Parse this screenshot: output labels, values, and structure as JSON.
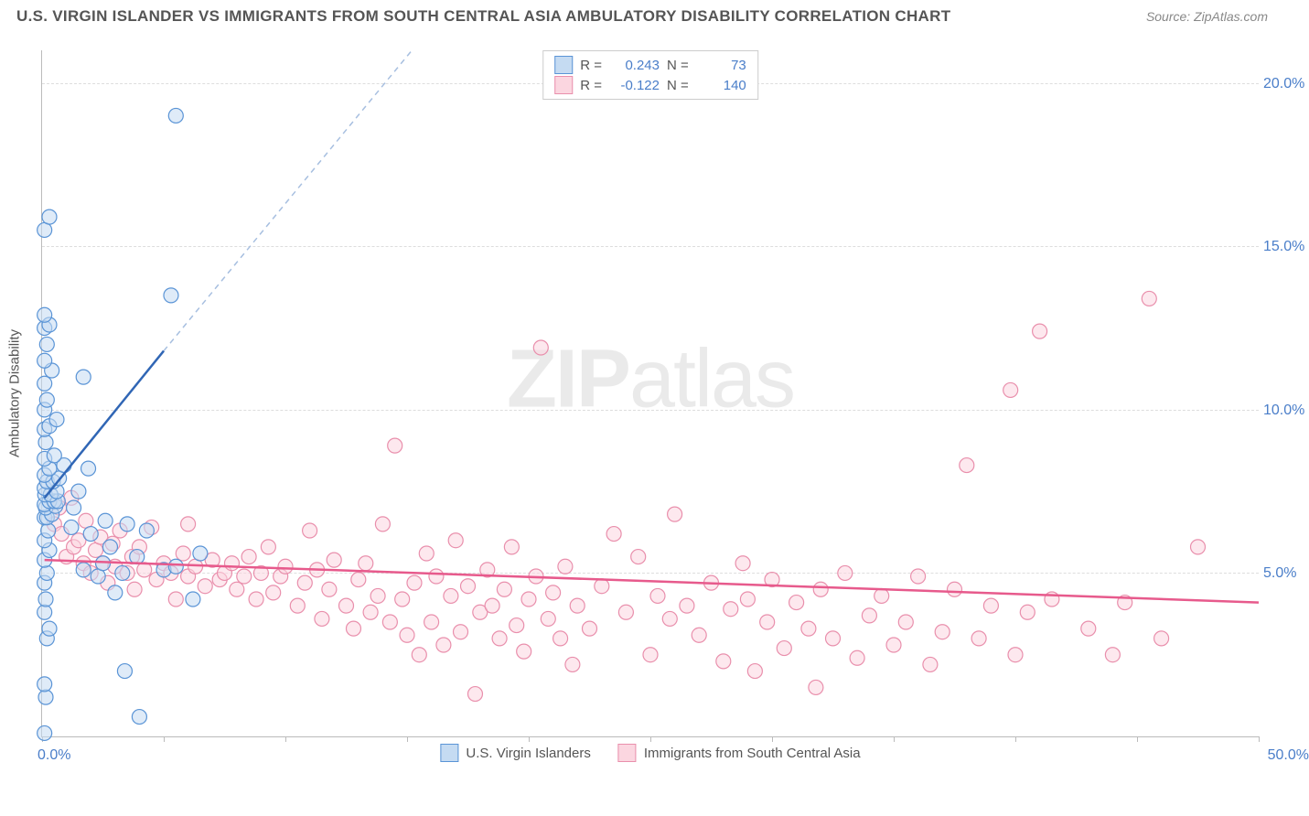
{
  "header": {
    "title": "U.S. VIRGIN ISLANDER VS IMMIGRANTS FROM SOUTH CENTRAL ASIA AMBULATORY DISABILITY CORRELATION CHART",
    "source": "Source: ZipAtlas.com"
  },
  "chart": {
    "type": "scatter",
    "y_axis_title": "Ambulatory Disability",
    "xlim": [
      0,
      50
    ],
    "ylim": [
      0,
      21
    ],
    "y_ticks": [
      5,
      10,
      15,
      20
    ],
    "y_tick_labels": [
      "5.0%",
      "10.0%",
      "15.0%",
      "20.0%"
    ],
    "x_tick_positions": [
      0,
      5,
      10,
      15,
      20,
      25,
      30,
      35,
      40,
      45,
      50
    ],
    "x_label_min": "0.0%",
    "x_label_max": "50.0%",
    "background_color": "#ffffff",
    "grid_color": "#dddddd",
    "axis_color": "#bbbbbb",
    "marker_radius": 8,
    "marker_stroke_width": 1.2,
    "watermark": "ZIPatlas"
  },
  "series": {
    "blue": {
      "label": "U.S. Virgin Islanders",
      "fill": "#c5dbf2",
      "stroke": "#5a94d6",
      "line_color": "#3066b5",
      "line_dash_color": "#a7bfe0",
      "r": "0.243",
      "n": "73",
      "trend_solid": {
        "x1": 0.1,
        "y1": 7.3,
        "x2": 5.0,
        "y2": 11.8
      },
      "trend_dash": {
        "x1": 5.0,
        "y1": 11.8,
        "x2": 15.2,
        "y2": 21.0
      },
      "points": [
        [
          0.1,
          0.1
        ],
        [
          0.15,
          1.2
        ],
        [
          0.1,
          1.6
        ],
        [
          0.2,
          3.0
        ],
        [
          0.3,
          3.3
        ],
        [
          0.1,
          3.8
        ],
        [
          0.15,
          4.2
        ],
        [
          0.1,
          4.7
        ],
        [
          0.2,
          5.0
        ],
        [
          0.1,
          5.4
        ],
        [
          0.3,
          5.7
        ],
        [
          0.1,
          6.0
        ],
        [
          0.25,
          6.3
        ],
        [
          0.1,
          6.7
        ],
        [
          0.2,
          6.7
        ],
        [
          0.4,
          6.8
        ],
        [
          0.15,
          7.0
        ],
        [
          0.55,
          7.05
        ],
        [
          0.1,
          7.1
        ],
        [
          0.3,
          7.2
        ],
        [
          0.5,
          7.2
        ],
        [
          0.65,
          7.2
        ],
        [
          0.12,
          7.4
        ],
        [
          0.35,
          7.4
        ],
        [
          0.1,
          7.6
        ],
        [
          0.6,
          7.5
        ],
        [
          0.2,
          7.8
        ],
        [
          0.45,
          7.8
        ],
        [
          0.1,
          8.0
        ],
        [
          0.7,
          7.9
        ],
        [
          0.3,
          8.2
        ],
        [
          0.1,
          8.5
        ],
        [
          0.9,
          8.3
        ],
        [
          0.5,
          8.6
        ],
        [
          0.15,
          9.0
        ],
        [
          0.1,
          9.4
        ],
        [
          0.3,
          9.5
        ],
        [
          0.6,
          9.7
        ],
        [
          0.1,
          10.0
        ],
        [
          0.2,
          10.3
        ],
        [
          0.1,
          10.8
        ],
        [
          0.4,
          11.2
        ],
        [
          0.1,
          11.5
        ],
        [
          0.2,
          12.0
        ],
        [
          0.1,
          12.5
        ],
        [
          0.3,
          12.6
        ],
        [
          0.1,
          12.9
        ],
        [
          0.1,
          15.5
        ],
        [
          0.3,
          15.9
        ],
        [
          1.2,
          6.4
        ],
        [
          1.3,
          7.0
        ],
        [
          1.5,
          7.5
        ],
        [
          1.7,
          5.1
        ],
        [
          1.7,
          11.0
        ],
        [
          1.9,
          8.2
        ],
        [
          2.0,
          6.2
        ],
        [
          2.3,
          4.9
        ],
        [
          2.5,
          5.3
        ],
        [
          2.6,
          6.6
        ],
        [
          2.8,
          5.8
        ],
        [
          3.0,
          4.4
        ],
        [
          3.3,
          5.0
        ],
        [
          3.5,
          6.5
        ],
        [
          3.4,
          2.0
        ],
        [
          3.9,
          5.5
        ],
        [
          4.0,
          0.6
        ],
        [
          4.3,
          6.3
        ],
        [
          5.0,
          5.1
        ],
        [
          5.3,
          13.5
        ],
        [
          5.5,
          19.0
        ],
        [
          5.5,
          5.2
        ],
        [
          6.2,
          4.2
        ],
        [
          6.5,
          5.6
        ]
      ]
    },
    "pink": {
      "label": "Immigrants from South Central Asia",
      "fill": "#fbd6e0",
      "stroke": "#e98fac",
      "line_color": "#e75a8c",
      "r": "-0.122",
      "n": "140",
      "trend": {
        "x1": 0.1,
        "y1": 5.4,
        "x2": 50.0,
        "y2": 4.1
      },
      "points": [
        [
          0.5,
          6.5
        ],
        [
          0.7,
          7.0
        ],
        [
          0.8,
          6.2
        ],
        [
          1.0,
          5.5
        ],
        [
          1.2,
          7.3
        ],
        [
          1.3,
          5.8
        ],
        [
          1.5,
          6.0
        ],
        [
          1.7,
          5.3
        ],
        [
          1.8,
          6.6
        ],
        [
          2.0,
          5.0
        ],
        [
          2.2,
          5.7
        ],
        [
          2.4,
          6.1
        ],
        [
          2.5,
          5.3
        ],
        [
          2.7,
          4.7
        ],
        [
          2.9,
          5.9
        ],
        [
          3.0,
          5.2
        ],
        [
          3.2,
          6.3
        ],
        [
          3.5,
          5.0
        ],
        [
          3.7,
          5.5
        ],
        [
          3.8,
          4.5
        ],
        [
          4.0,
          5.8
        ],
        [
          4.2,
          5.1
        ],
        [
          4.5,
          6.4
        ],
        [
          4.7,
          4.8
        ],
        [
          5.0,
          5.3
        ],
        [
          5.3,
          5.0
        ],
        [
          5.5,
          4.2
        ],
        [
          5.8,
          5.6
        ],
        [
          6.0,
          6.5
        ],
        [
          6.0,
          4.9
        ],
        [
          6.3,
          5.2
        ],
        [
          6.7,
          4.6
        ],
        [
          7.0,
          5.4
        ],
        [
          7.3,
          4.8
        ],
        [
          7.5,
          5.0
        ],
        [
          7.8,
          5.3
        ],
        [
          8.0,
          4.5
        ],
        [
          8.3,
          4.9
        ],
        [
          8.5,
          5.5
        ],
        [
          8.8,
          4.2
        ],
        [
          9.0,
          5.0
        ],
        [
          9.3,
          5.8
        ],
        [
          9.5,
          4.4
        ],
        [
          9.8,
          4.9
        ],
        [
          10.0,
          5.2
        ],
        [
          10.5,
          4.0
        ],
        [
          10.8,
          4.7
        ],
        [
          11.0,
          6.3
        ],
        [
          11.3,
          5.1
        ],
        [
          11.5,
          3.6
        ],
        [
          11.8,
          4.5
        ],
        [
          12.0,
          5.4
        ],
        [
          12.5,
          4.0
        ],
        [
          12.8,
          3.3
        ],
        [
          13.0,
          4.8
        ],
        [
          13.3,
          5.3
        ],
        [
          13.5,
          3.8
        ],
        [
          13.8,
          4.3
        ],
        [
          14.0,
          6.5
        ],
        [
          14.3,
          3.5
        ],
        [
          14.5,
          8.9
        ],
        [
          14.8,
          4.2
        ],
        [
          15.0,
          3.1
        ],
        [
          15.3,
          4.7
        ],
        [
          15.5,
          2.5
        ],
        [
          15.8,
          5.6
        ],
        [
          16.0,
          3.5
        ],
        [
          16.2,
          4.9
        ],
        [
          16.5,
          2.8
        ],
        [
          16.8,
          4.3
        ],
        [
          17.0,
          6.0
        ],
        [
          17.2,
          3.2
        ],
        [
          17.5,
          4.6
        ],
        [
          17.8,
          1.3
        ],
        [
          18.0,
          3.8
        ],
        [
          18.3,
          5.1
        ],
        [
          18.5,
          4.0
        ],
        [
          18.8,
          3.0
        ],
        [
          19.0,
          4.5
        ],
        [
          19.3,
          5.8
        ],
        [
          19.5,
          3.4
        ],
        [
          19.8,
          2.6
        ],
        [
          20.0,
          4.2
        ],
        [
          20.3,
          4.9
        ],
        [
          20.5,
          11.9
        ],
        [
          20.8,
          3.6
        ],
        [
          21.0,
          4.4
        ],
        [
          21.3,
          3.0
        ],
        [
          21.5,
          5.2
        ],
        [
          21.8,
          2.2
        ],
        [
          22.0,
          4.0
        ],
        [
          22.5,
          3.3
        ],
        [
          23.0,
          4.6
        ],
        [
          23.5,
          6.2
        ],
        [
          24.0,
          3.8
        ],
        [
          24.5,
          5.5
        ],
        [
          25.0,
          2.5
        ],
        [
          25.3,
          4.3
        ],
        [
          25.8,
          3.6
        ],
        [
          26.0,
          6.8
        ],
        [
          26.5,
          4.0
        ],
        [
          27.0,
          3.1
        ],
        [
          27.5,
          4.7
        ],
        [
          28.0,
          2.3
        ],
        [
          28.3,
          3.9
        ],
        [
          28.8,
          5.3
        ],
        [
          29.0,
          4.2
        ],
        [
          29.3,
          2.0
        ],
        [
          29.8,
          3.5
        ],
        [
          30.0,
          4.8
        ],
        [
          30.5,
          2.7
        ],
        [
          31.0,
          4.1
        ],
        [
          31.5,
          3.3
        ],
        [
          31.8,
          1.5
        ],
        [
          32.0,
          4.5
        ],
        [
          32.5,
          3.0
        ],
        [
          33.0,
          5.0
        ],
        [
          33.5,
          2.4
        ],
        [
          34.0,
          3.7
        ],
        [
          34.5,
          4.3
        ],
        [
          35.0,
          2.8
        ],
        [
          35.5,
          3.5
        ],
        [
          36.0,
          4.9
        ],
        [
          36.5,
          2.2
        ],
        [
          37.0,
          3.2
        ],
        [
          37.5,
          4.5
        ],
        [
          38.0,
          8.3
        ],
        [
          38.5,
          3.0
        ],
        [
          39.0,
          4.0
        ],
        [
          39.8,
          10.6
        ],
        [
          40.0,
          2.5
        ],
        [
          40.5,
          3.8
        ],
        [
          41.0,
          12.4
        ],
        [
          41.5,
          4.2
        ],
        [
          43.0,
          3.3
        ],
        [
          44.0,
          2.5
        ],
        [
          44.5,
          4.1
        ],
        [
          45.5,
          13.4
        ],
        [
          46.0,
          3.0
        ],
        [
          47.5,
          5.8
        ]
      ]
    }
  },
  "legend_top": {
    "r_label": "R =",
    "n_label": "N ="
  }
}
